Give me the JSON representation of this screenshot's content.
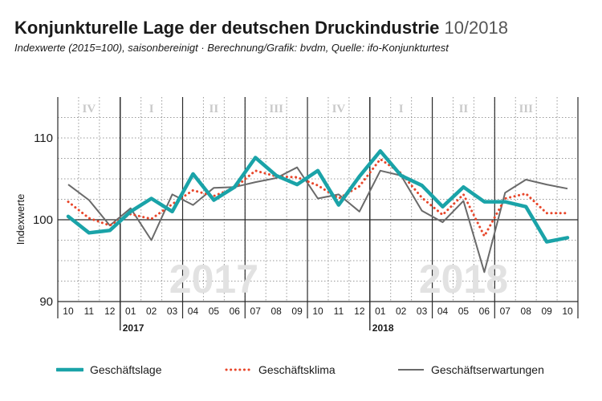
{
  "header": {
    "title": "Konjunkturelle Lage der deutschen Druckindustrie",
    "date": "10/2018",
    "subtitle": "Indexwerte (2015=100), saisonbereinigt · Berechnung/Grafik: bvdm, Quelle: ifo-Konjunkturtest"
  },
  "chart_data": {
    "type": "line",
    "ylabel": "Indexwerte",
    "ylim": [
      90,
      115
    ],
    "yticks": [
      90,
      100,
      110
    ],
    "categories": [
      "10",
      "11",
      "12",
      "01",
      "02",
      "03",
      "04",
      "05",
      "06",
      "07",
      "08",
      "09",
      "10",
      "11",
      "12",
      "01",
      "02",
      "03",
      "04",
      "05",
      "06",
      "07",
      "08",
      "09",
      "10"
    ],
    "quarter_labels": [
      "IV",
      "I",
      "II",
      "III",
      "IV",
      "I",
      "II",
      "III"
    ],
    "year_labels": [
      "2017",
      "2018"
    ],
    "watermarks": [
      "2017",
      "2018"
    ],
    "grid": true,
    "legend_position": "bottom",
    "series": [
      {
        "name": "Geschäftslage",
        "style": "solid-thick",
        "color": "#1aa3a8",
        "values": [
          100.4,
          98.4,
          98.7,
          101.0,
          102.6,
          101.0,
          105.6,
          102.4,
          104.0,
          107.6,
          105.4,
          104.3,
          106.0,
          101.8,
          105.3,
          108.4,
          105.4,
          104.2,
          101.6,
          104.0,
          102.2,
          102.2,
          101.6,
          97.3,
          97.8
        ]
      },
      {
        "name": "Geschäftsklima",
        "style": "dotted",
        "color": "#e8462a",
        "values": [
          102.2,
          100.2,
          99.3,
          100.7,
          100.1,
          101.9,
          103.6,
          102.9,
          103.9,
          106.0,
          105.3,
          105.2,
          104.2,
          102.6,
          104.1,
          107.4,
          105.7,
          102.7,
          100.6,
          103.1,
          98.0,
          102.6,
          103.2,
          100.8,
          100.8
        ]
      },
      {
        "name": "Geschäftserwartungen",
        "style": "solid-thin",
        "color": "#6a6a6a",
        "values": [
          104.3,
          102.4,
          99.3,
          101.4,
          97.5,
          103.1,
          101.8,
          103.9,
          104.0,
          104.6,
          105.1,
          106.4,
          102.6,
          103.1,
          101.0,
          106.0,
          105.4,
          101.1,
          99.7,
          102.3,
          93.6,
          103.3,
          104.9,
          104.3,
          103.8
        ]
      }
    ]
  }
}
